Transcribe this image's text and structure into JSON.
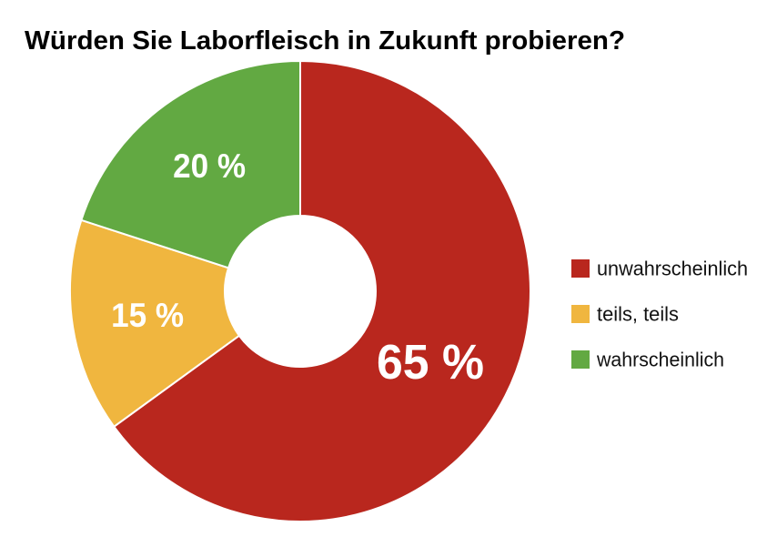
{
  "chart_data": {
    "type": "pie",
    "variant": "donut",
    "title": "Würden Sie Laborfleisch in Zukunft probieren?",
    "categories": [
      "unwahrscheinlich",
      "teils, teils",
      "wahrscheinlich"
    ],
    "values": [
      65,
      15,
      20
    ],
    "labels": [
      "65 %",
      "15 %",
      "20 %"
    ],
    "colors": [
      "#B9271E",
      "#F0B63F",
      "#62A942"
    ],
    "start": "top",
    "direction": "clockwise",
    "legend": "right"
  }
}
